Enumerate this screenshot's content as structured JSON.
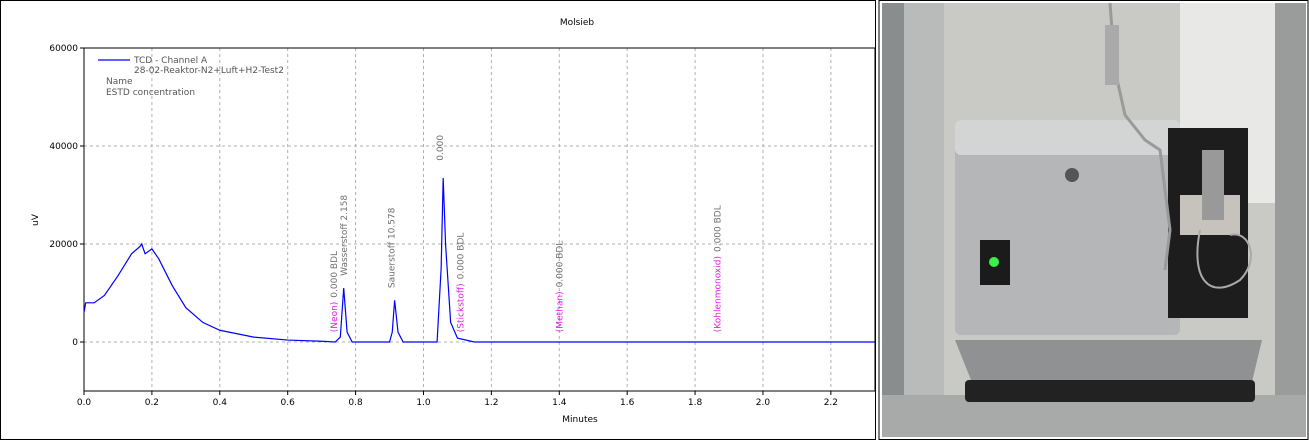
{
  "chart_data": {
    "type": "line",
    "title": "Molsieb",
    "x_label": "Minutes",
    "y_label": "uV",
    "xlim": [
      0,
      2.33
    ],
    "ylim": [
      -10000,
      60000
    ],
    "xticks": [
      {
        "value": 0,
        "label": "0.0"
      },
      0.2,
      0.4,
      0.6,
      0.8,
      {
        "value": 1,
        "label": "1.0"
      },
      1.2,
      1.4,
      1.6,
      1.8,
      {
        "value": 2,
        "label": "2.0"
      },
      2.2
    ],
    "yticks": [
      0,
      20000,
      40000,
      60000
    ],
    "grid": true,
    "legend_lines": [
      "28-02-Reaktor-N2+Luft+H2-Test2",
      "Name",
      "ESTD concentration"
    ],
    "x": [
      0,
      0.005,
      0.03,
      0.06,
      0.1,
      0.14,
      0.165,
      0.17,
      0.18,
      0.2,
      0.22,
      0.26,
      0.3,
      0.35,
      0.4,
      0.5,
      0.6,
      0.7,
      0.74,
      0.755,
      0.765,
      0.775,
      0.79,
      0.9,
      0.908,
      0.915,
      0.925,
      0.94,
      1.04,
      1.052,
      1.058,
      1.065,
      1.08,
      1.1,
      1.15,
      2.33
    ],
    "series": [
      {
        "name": "TCD - Channel A",
        "color": "#0000ff",
        "values": [
          6000,
          8000,
          8000,
          9500,
          13500,
          18000,
          19500,
          20000,
          18000,
          19000,
          17000,
          11500,
          7000,
          4000,
          2400,
          1000,
          400,
          150,
          0,
          1000,
          11000,
          2000,
          0,
          0,
          2000,
          8500,
          2000,
          0,
          0,
          15000,
          33500,
          20000,
          4000,
          800,
          0,
          0
        ]
      }
    ],
    "annotation_colors": {
      "name": "#e020e0",
      "label": "#707070"
    },
    "annotations": [
      {
        "x": 0.745,
        "y": 2000,
        "name": "(Neon)",
        "label": "0.000 BDL"
      },
      {
        "x": 0.775,
        "y": 13500,
        "label": "Wasserstoff 2.158"
      },
      {
        "x": 0.915,
        "y": 11000,
        "label": "Sauerstoff 10.578"
      },
      {
        "x": 1.058,
        "y": 37000,
        "label": "0.000"
      },
      {
        "x": 1.118,
        "y": 2000,
        "name": "(Stickstoff)",
        "label": "0.000 BDL"
      },
      {
        "x": 1.41,
        "y": 2000,
        "name": "(Methan)",
        "label": "0.000 BDL"
      },
      {
        "x": 1.875,
        "y": 2000,
        "name": "(Kohlenmonoxid)",
        "label": "0.000 BDL"
      }
    ]
  }
}
